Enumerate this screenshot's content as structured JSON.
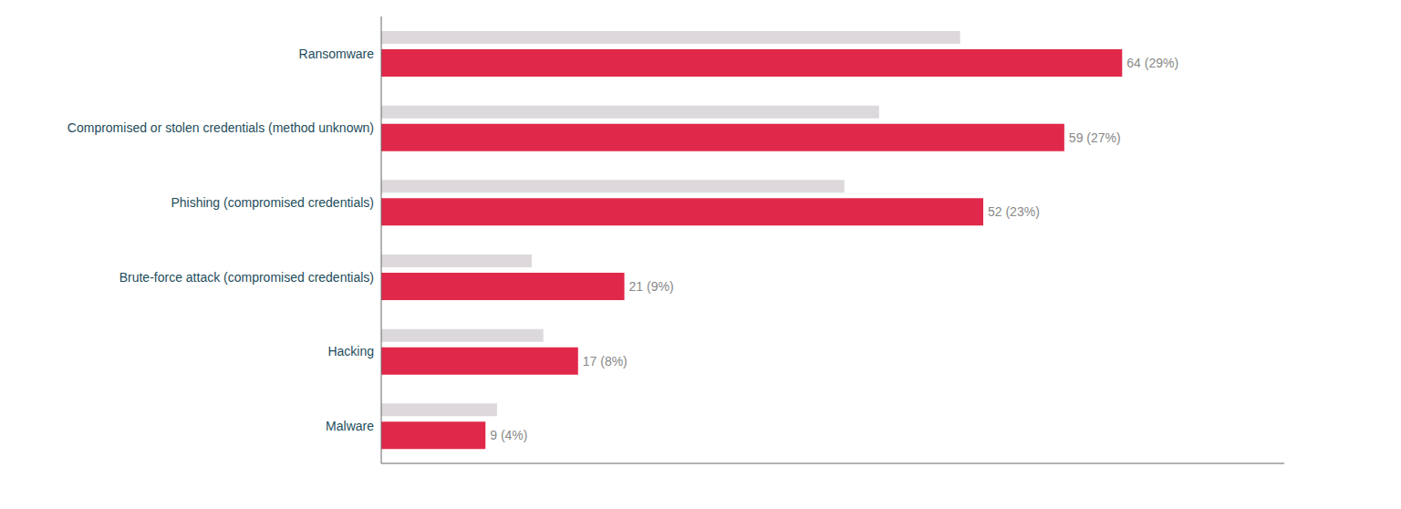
{
  "chart_data": {
    "type": "bar",
    "orientation": "horizontal",
    "categories": [
      "Ransomware",
      "Compromised or stolen credentials (method unknown)",
      "Phishing (compromised credentials)",
      "Brute-force attack (compromised credentials)",
      "Hacking",
      "Malware"
    ],
    "series": [
      {
        "color": "#ddd8dc",
        "values": [
          50,
          43,
          40,
          13,
          14,
          10
        ]
      },
      {
        "color": "#e0294a",
        "values": [
          64,
          59,
          52,
          21,
          17,
          9
        ],
        "value_labels": [
          "64 (29%)",
          "59 (27%)",
          "52 (23%)",
          "21 (9%)",
          "17 (8%)",
          "9 (4%)"
        ],
        "data_labels": true
      }
    ],
    "xlim": [
      0,
      78
    ],
    "tick_labels": false,
    "grid": false
  }
}
